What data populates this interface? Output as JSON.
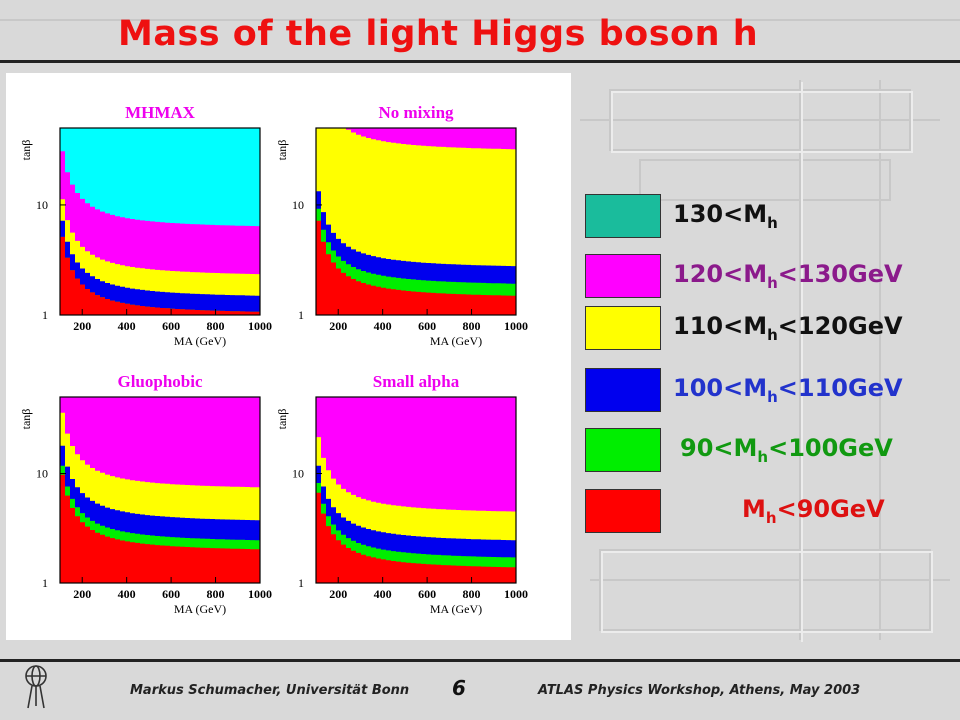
{
  "slide": {
    "title": "Mass of the light Higgs boson h",
    "page_number": "6",
    "footer_left": "Markus Schumacher,  Universität Bonn",
    "footer_right": "ATLAS Physics Workshop, Athens, May 2003"
  },
  "colors": {
    "mh_gt_130": "#00ffff",
    "mh_120_130": "#ff00ff",
    "mh_110_120": "#ffff00",
    "mh_100_110": "#0000ee",
    "mh_90_100": "#00ee00",
    "mh_lt_90": "#ff0000"
  },
  "legend": [
    {
      "label_pre": "130<M",
      "sub": "h",
      "label_post": "",
      "swatch": "#1abc9c",
      "text_color": "#111111"
    },
    {
      "label_pre": "120<M",
      "sub": "h",
      "label_post": "<130GeV",
      "swatch": "#ff00ff",
      "text_color": "#8b1a8b"
    },
    {
      "label_pre": "110<M",
      "sub": "h",
      "label_post": "<120GeV",
      "swatch": "#ffff00",
      "text_color": "#111111"
    },
    {
      "label_pre": "100<M",
      "sub": "h",
      "label_post": "<110GeV",
      "swatch": "#0000ee",
      "text_color": "#2233cc"
    },
    {
      "label_pre": "90<M",
      "sub": "h",
      "label_post": "<100GeV",
      "swatch": "#00ee00",
      "text_color": "#119911"
    },
    {
      "label_pre": "M",
      "sub": "h",
      "label_post": "<90GeV",
      "swatch": "#ff0000",
      "text_color": "#dd1111"
    }
  ],
  "chart_data": [
    {
      "type": "heatmap",
      "title": "MHMAX",
      "xlabel": "M_A (GeV)",
      "ylabel": "tanβ",
      "xticks": [
        200,
        400,
        600,
        800,
        1000
      ],
      "yticks": [
        "1",
        "10"
      ],
      "regions_tanb_upper_at_MA_1000": {
        "mh_lt_90": 1.0,
        "mh_90_100": 1.0,
        "mh_100_110": 1.4,
        "mh_110_120": 2.2,
        "mh_120_130": 6.0,
        "mh_gt_130": 50
      }
    },
    {
      "type": "heatmap",
      "title": "No mixing",
      "xlabel": "M_A (GeV)",
      "ylabel": "tanβ",
      "xticks": [
        200,
        400,
        600,
        800,
        1000
      ],
      "yticks": [
        "1",
        "10"
      ],
      "regions_tanb_upper_at_MA_1000": {
        "mh_lt_90": 1.4,
        "mh_90_100": 1.8,
        "mh_100_110": 2.6,
        "mh_110_120": 30,
        "mh_120_130": 50
      }
    },
    {
      "type": "heatmap",
      "title": "Gluophobic",
      "xlabel": "M_A (GeV)",
      "ylabel": "tanβ",
      "xticks": [
        200,
        400,
        600,
        800,
        1000
      ],
      "yticks": [
        "1",
        "10"
      ],
      "regions_tanb_upper_at_MA_1000": {
        "mh_lt_90": 1.9,
        "mh_90_100": 2.3,
        "mh_100_110": 3.5,
        "mh_110_120": 7.0,
        "mh_120_130": 50
      }
    },
    {
      "type": "heatmap",
      "title": "Small alpha",
      "xlabel": "M_A (GeV)",
      "ylabel": "tanβ",
      "xticks": [
        200,
        400,
        600,
        800,
        1000
      ],
      "yticks": [
        "1",
        "10"
      ],
      "regions_tanb_upper_at_MA_1000": {
        "mh_lt_90": 1.3,
        "mh_90_100": 1.6,
        "mh_100_110": 2.3,
        "mh_110_120": 4.2,
        "mh_120_130": 50
      }
    }
  ]
}
